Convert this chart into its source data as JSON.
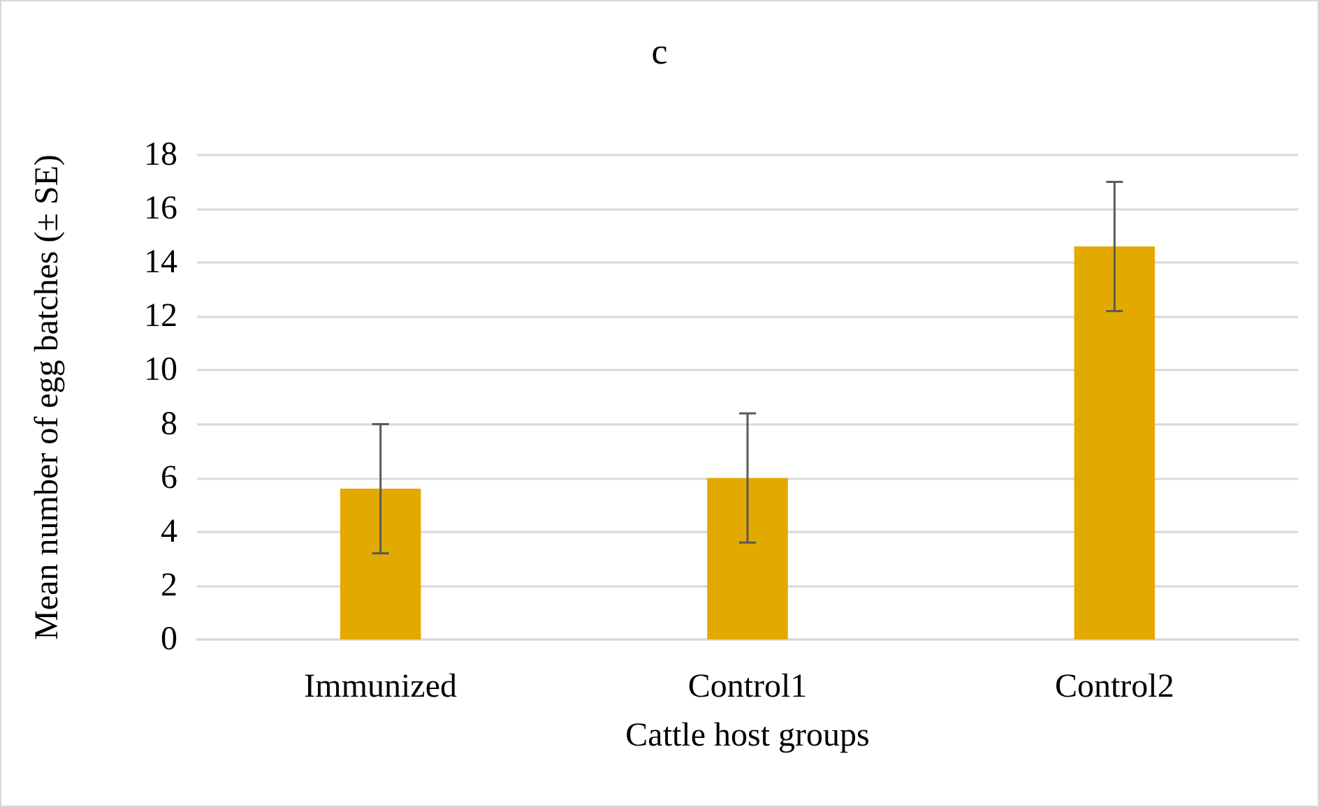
{
  "chart_data": {
    "type": "bar",
    "title": "c",
    "xlabel": "Cattle host groups",
    "ylabel": "Mean number of egg batches (± SE)",
    "categories": [
      "Immunized",
      "Control1",
      "Control2"
    ],
    "values": [
      5.6,
      6.0,
      14.6
    ],
    "errors": [
      2.4,
      2.4,
      2.4
    ],
    "color": "#e2aa00",
    "ylim": [
      0,
      18
    ],
    "yticks": [
      0,
      2,
      4,
      6,
      8,
      10,
      12,
      14,
      16,
      18
    ],
    "grid": "y"
  }
}
